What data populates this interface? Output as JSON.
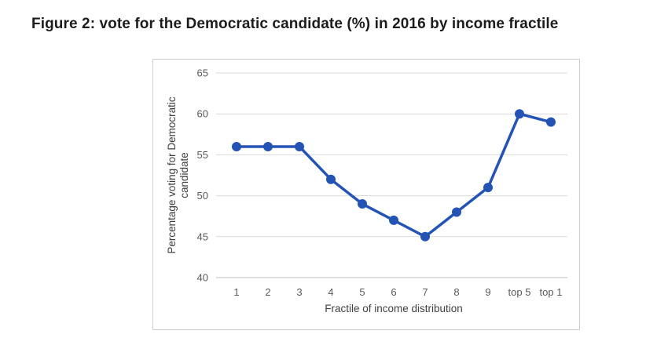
{
  "figure_title": "Figure 2: vote for the Democratic candidate (%) in 2016 by income fractile",
  "chart_data": {
    "type": "line",
    "categories": [
      "1",
      "2",
      "3",
      "4",
      "5",
      "6",
      "7",
      "8",
      "9",
      "top 5",
      "top 1"
    ],
    "values": [
      56,
      56,
      56,
      52,
      49,
      47,
      45,
      48,
      51,
      60,
      59
    ],
    "xlabel": "Fractile of income distribution",
    "ylabel": "Percentage voting for Democratic candidate",
    "ylabel_lines": [
      "Percentage voting for Democratic",
      "candidate"
    ],
    "ylim": [
      40,
      65
    ],
    "yticks": [
      40,
      45,
      50,
      55,
      60,
      65
    ],
    "grid": "horizontal",
    "legend": "none",
    "marker": "circle"
  },
  "colors": {
    "line": "#2353b4",
    "marker": "#2353b4",
    "gridline": "#d9d9d9",
    "axis_line": "#bfbfbf",
    "tick_text": "#595959",
    "axis_title_text": "#404040",
    "chart_border": "#cfcfcf",
    "title_text": "#1c1c1e",
    "background": "#ffffff"
  }
}
